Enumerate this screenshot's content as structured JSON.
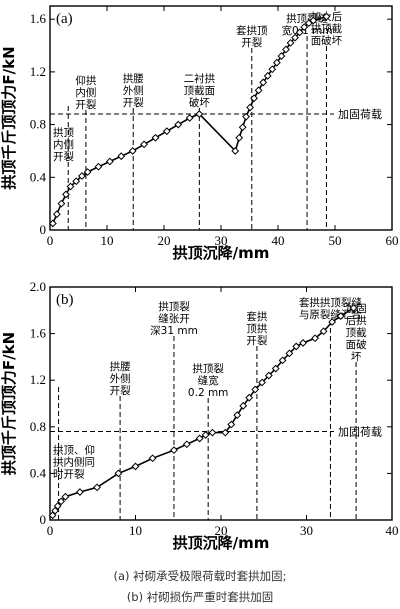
{
  "chart_data": [
    {
      "type": "line",
      "panel_label": "(a)",
      "xlabel": "拱顶沉降/mm",
      "ylabel": "拱顶千斤顶顶力F/kN",
      "xlim": [
        0,
        60
      ],
      "ylim": [
        0,
        1.7
      ],
      "xticks": [
        0,
        10,
        20,
        30,
        40,
        50,
        60
      ],
      "yticks": [
        0.4,
        0.8,
        1.2,
        1.6
      ],
      "ytick_labels": [
        "0.4",
        "0.8",
        "1.2",
        "1.6"
      ],
      "reference_line": {
        "y": 0.88,
        "label": "加固荷载"
      },
      "series": [
        {
          "x": [
            0.5,
            1.2,
            2.0,
            2.8,
            3.6,
            4.6,
            5.6,
            6.6,
            8.5,
            10.5,
            12.5,
            14.5,
            16.5,
            18.5,
            20.5,
            22.5,
            24.5,
            26.2,
            32.5,
            33.2,
            33.8,
            34.4,
            35.1,
            35.8,
            36.6,
            37.4,
            38.2,
            39.0,
            39.8,
            40.6,
            41.4,
            42.2,
            43.0,
            43.8,
            44.6,
            45.4,
            46.2,
            48.5
          ],
          "y": [
            0.05,
            0.12,
            0.2,
            0.27,
            0.33,
            0.37,
            0.41,
            0.44,
            0.48,
            0.52,
            0.56,
            0.6,
            0.65,
            0.7,
            0.75,
            0.8,
            0.85,
            0.88,
            0.6,
            0.7,
            0.78,
            0.86,
            0.93,
            1.0,
            1.06,
            1.12,
            1.17,
            1.22,
            1.27,
            1.32,
            1.37,
            1.42,
            1.46,
            1.5,
            1.54,
            1.57,
            1.59,
            1.62
          ]
        }
      ],
      "annotations": [
        {
          "x": 3.2,
          "lines": [
            "拱顶",
            "内侧",
            "开裂"
          ],
          "placement": "below-reference"
        },
        {
          "x": 6.3,
          "lines": [
            "仰拱",
            "内侧",
            "开裂"
          ],
          "placement": "above"
        },
        {
          "x": 14.6,
          "lines": [
            "拱腰",
            "外侧",
            "开裂"
          ],
          "placement": "above"
        },
        {
          "x": 26.2,
          "lines": [
            "二衬拱",
            "顶截面",
            "破坏"
          ],
          "placement": "above"
        },
        {
          "x": 35.4,
          "lines": [
            "套拱顶",
            "开裂"
          ],
          "placement": "above"
        },
        {
          "x": 45.1,
          "lines": [
            "拱顶裂缝",
            "宽0.1 mm"
          ],
          "placement": "above"
        },
        {
          "x": 48.5,
          "lines": [
            "加大后",
            "拱顶截",
            "面破坏"
          ],
          "placement": "above"
        }
      ]
    },
    {
      "type": "line",
      "panel_label": "(b)",
      "xlabel": "拱顶沉降/mm",
      "ylabel": "拱顶千斤顶顶力F/kN",
      "xlim": [
        0,
        40
      ],
      "ylim": [
        0,
        2.0
      ],
      "xticks": [
        0,
        10,
        20,
        30,
        40
      ],
      "yticks": [
        0.4,
        0.8,
        1.2,
        1.6,
        2.0
      ],
      "ytick_labels": [
        "0.4",
        "0.8",
        "1.2",
        "1.6",
        "2.0"
      ],
      "reference_line": {
        "y": 0.76,
        "label": "加固荷载"
      },
      "series": [
        {
          "x": [
            0.3,
            0.6,
            0.9,
            1.3,
            1.8,
            3.5,
            5.5,
            8.0,
            10.0,
            12.0,
            14.5,
            16.0,
            17.5,
            18.2,
            19.0,
            20.5,
            21.2,
            21.9,
            22.6,
            23.3,
            24.0,
            24.8,
            25.6,
            26.4,
            27.2,
            28.0,
            28.8,
            29.6,
            31.0,
            32.0,
            33.0,
            34.0,
            35.5
          ],
          "y": [
            0.04,
            0.08,
            0.12,
            0.16,
            0.2,
            0.24,
            0.28,
            0.4,
            0.46,
            0.53,
            0.6,
            0.65,
            0.7,
            0.73,
            0.75,
            0.75,
            0.82,
            0.9,
            0.98,
            1.05,
            1.12,
            1.18,
            1.24,
            1.3,
            1.37,
            1.43,
            1.49,
            1.52,
            1.56,
            1.62,
            1.7,
            1.75,
            1.82
          ]
        }
      ],
      "annotations": [
        {
          "x": 1.0,
          "lines": [
            "拱顶、仰",
            "拱内侧同",
            "时开裂"
          ],
          "placement": "below-reference"
        },
        {
          "x": 8.2,
          "lines": [
            "拱腰",
            "外侧",
            "开裂"
          ],
          "placement": "above"
        },
        {
          "x": 14.5,
          "lines": [
            "拱顶裂",
            "缝张开",
            "深31 mm"
          ],
          "placement": "above"
        },
        {
          "x": 18.5,
          "lines": [
            "拱顶裂",
            "缝宽",
            "0.2 mm"
          ],
          "placement": "above"
        },
        {
          "x": 24.2,
          "lines": [
            "套拱",
            "顶拱",
            "开裂"
          ],
          "placement": "above"
        },
        {
          "x": 32.8,
          "lines": [
            "套拱拱顶裂缝",
            "与原裂缝汇合"
          ],
          "placement": "above"
        },
        {
          "x": 35.8,
          "lines": [
            "加固",
            "后拱",
            "顶截",
            "面破",
            "坏"
          ],
          "placement": "above"
        }
      ]
    }
  ],
  "captions": {
    "a": "(a) 衬砌承受极限荷载时套拱加固;",
    "b": "(b) 衬砌损伤严重时套拱加固"
  }
}
